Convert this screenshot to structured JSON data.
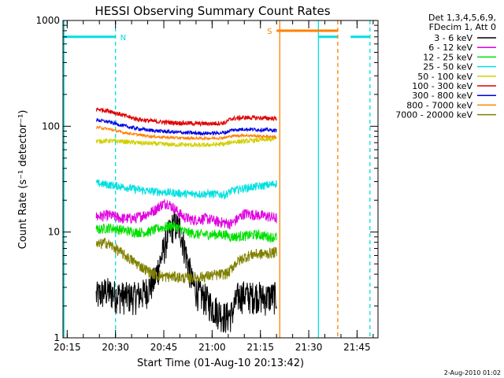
{
  "chart_data": {
    "type": "line",
    "title": "HESSI Observing Summary Count Rates",
    "xlabel": "Start Time (01-Aug-10 20:13:42)",
    "ylabel": "Count Rate (s⁻¹ detector⁻¹)",
    "y_scale": "log",
    "ylim": [
      1,
      1000
    ],
    "xlim": [
      "20:13:42",
      "21:51:30"
    ],
    "x_ticks": [
      "20:15",
      "20:30",
      "20:45",
      "21:00",
      "21:15",
      "21:30",
      "21:45"
    ],
    "y_ticks": [
      "1",
      "10",
      "100",
      "1000"
    ],
    "grid": false,
    "legend_position": "top-right",
    "legend_header": [
      "Det 1,3,4,5,6,9,",
      "FDecim 1, Att 0"
    ],
    "series": [
      {
        "name": "3 - 6 keV",
        "color": "#000000",
        "x": [
          "20:24",
          "20:27",
          "20:30",
          "20:33",
          "20:36",
          "20:39",
          "20:42",
          "20:44",
          "20:46",
          "20:48",
          "20:50",
          "20:52",
          "20:54",
          "20:56",
          "20:58",
          "21:00",
          "21:02",
          "21:04",
          "21:06",
          "21:08",
          "21:10",
          "21:12",
          "21:14",
          "21:16",
          "21:18",
          "21:20"
        ],
        "y": [
          2.5,
          2.8,
          2.6,
          2.5,
          2.5,
          2.7,
          3.5,
          5.5,
          9,
          12,
          11,
          6,
          3.2,
          2.6,
          2.4,
          2.0,
          1.8,
          1.6,
          1.7,
          2.5,
          2.6,
          2.5,
          2.6,
          2.4,
          2.5,
          2.5
        ]
      },
      {
        "name": "6 - 12 keV",
        "color": "#e000e0",
        "x": [
          "20:24",
          "20:28",
          "20:32",
          "20:36",
          "20:40",
          "20:42",
          "20:44",
          "20:46",
          "20:48",
          "20:51",
          "20:54",
          "20:58",
          "21:02",
          "21:06",
          "21:10",
          "21:14",
          "21:18",
          "21:20"
        ],
        "y": [
          14,
          14.5,
          13.5,
          13.5,
          15,
          16,
          18,
          19,
          17,
          14,
          13,
          13.5,
          12.5,
          12,
          15,
          14.5,
          14,
          13.5
        ]
      },
      {
        "name": "12 - 25 keV",
        "color": "#00e000",
        "x": [
          "20:24",
          "20:28",
          "20:32",
          "20:36",
          "20:40",
          "20:44",
          "20:48",
          "20:52",
          "20:56",
          "21:00",
          "21:04",
          "21:06",
          "21:10",
          "21:14",
          "21:18",
          "21:20"
        ],
        "y": [
          10.5,
          11,
          10.5,
          10,
          10,
          11,
          11.5,
          10,
          9.5,
          9.5,
          9.5,
          9,
          9.2,
          9.5,
          9,
          9
        ]
      },
      {
        "name": "25 - 50 keV",
        "color": "#00e0e0",
        "x": [
          "20:24",
          "20:28",
          "20:32",
          "20:36",
          "20:40",
          "20:44",
          "20:48",
          "20:52",
          "20:56",
          "21:00",
          "21:04",
          "21:06",
          "21:10",
          "21:14",
          "21:18",
          "21:20"
        ],
        "y": [
          29,
          28,
          27,
          25.5,
          24.5,
          24,
          23.5,
          23,
          23,
          23,
          22.5,
          24.5,
          26,
          27,
          28,
          29
        ]
      },
      {
        "name": "50 - 100 keV",
        "color": "#d0d000",
        "x": [
          "20:24",
          "20:28",
          "20:32",
          "20:36",
          "20:40",
          "20:44",
          "20:48",
          "20:52",
          "20:56",
          "21:00",
          "21:04",
          "21:06",
          "21:10",
          "21:14",
          "21:18",
          "21:20"
        ],
        "y": [
          72,
          73,
          72,
          70,
          69,
          68,
          67,
          67,
          66,
          67,
          68,
          71,
          72,
          74,
          75,
          76
        ]
      },
      {
        "name": "100 - 300 keV",
        "color": "#e00000",
        "x": [
          "20:24",
          "20:28",
          "20:32",
          "20:36",
          "20:40",
          "20:44",
          "20:48",
          "20:52",
          "20:56",
          "21:00",
          "21:04",
          "21:06",
          "21:10",
          "21:14",
          "21:18",
          "21:20"
        ],
        "y": [
          145,
          140,
          128,
          118,
          113,
          110,
          108,
          107,
          106,
          106,
          108,
          118,
          121,
          120,
          119,
          118
        ]
      },
      {
        "name": "300 - 800 keV",
        "color": "#0000e0",
        "x": [
          "20:24",
          "20:28",
          "20:32",
          "20:36",
          "20:40",
          "20:44",
          "20:48",
          "20:52",
          "20:56",
          "21:00",
          "21:04",
          "21:06",
          "21:10",
          "21:14",
          "21:18",
          "21:20"
        ],
        "y": [
          115,
          110,
          102,
          96,
          92,
          90,
          88,
          87,
          86,
          86,
          87,
          92,
          94,
          93,
          92,
          91
        ]
      },
      {
        "name": "800 - 7000 keV",
        "color": "#ff8000",
        "x": [
          "20:24",
          "20:28",
          "20:32",
          "20:36",
          "20:40",
          "20:44",
          "20:48",
          "20:52",
          "20:56",
          "21:00",
          "21:04",
          "21:06",
          "21:10",
          "21:14",
          "21:18",
          "21:20"
        ],
        "y": [
          98,
          94,
          88,
          84,
          81,
          79,
          78,
          77,
          77,
          77,
          78,
          81,
          82,
          81,
          80,
          79
        ]
      },
      {
        "name": "7000 - 20000 keV",
        "color": "#808000",
        "x": [
          "20:24",
          "20:27",
          "20:30",
          "20:33",
          "20:36",
          "20:39",
          "20:42",
          "20:45",
          "20:48",
          "20:51",
          "20:54",
          "20:57",
          "21:00",
          "21:03",
          "21:05",
          "21:07",
          "21:10",
          "21:13",
          "21:16",
          "21:20"
        ],
        "y": [
          7.5,
          8,
          7,
          6,
          5.2,
          4.5,
          4,
          3.8,
          3.8,
          3.7,
          3.7,
          3.8,
          3.9,
          4.0,
          4.1,
          5.0,
          5.8,
          6.2,
          6.2,
          6.5
        ]
      }
    ],
    "flags": [
      {
        "label": "N",
        "color": "#00e0e0",
        "level": 700,
        "segments": [
          [
            "20:13:42",
            "20:30"
          ],
          [
            "21:33",
            "21:39"
          ],
          [
            "21:43",
            "21:49"
          ]
        ],
        "solid_lines": [
          "20:14",
          "21:33"
        ],
        "dashed_lines": [
          "20:30",
          "21:49"
        ]
      },
      {
        "label": "S",
        "color": "#ff8000",
        "level": 800,
        "segments": [
          [
            "21:20",
            "21:39"
          ]
        ],
        "solid_lines": [
          "21:21"
        ],
        "dashed_lines": [
          "21:39"
        ]
      }
    ]
  },
  "footer": {
    "date_stamp": "2-Aug-2010 01:02"
  }
}
